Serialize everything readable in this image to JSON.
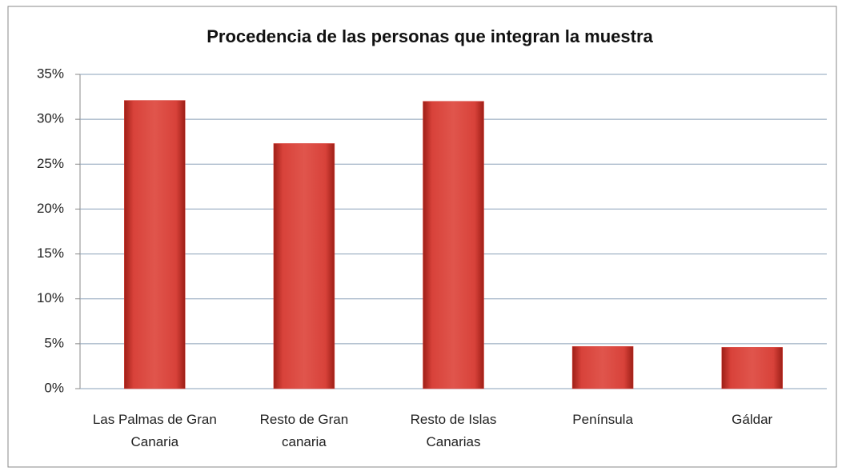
{
  "chart_data": {
    "type": "bar",
    "title": "Procedencia de las personas que integran la muestra",
    "categories": [
      "Las Palmas de Gran Canaria",
      "Resto de Gran canaria",
      "Resto de Islas Canarias",
      "Península",
      "Gáldar"
    ],
    "values": [
      32.1,
      27.3,
      32,
      4.7,
      4.6
    ],
    "color": "#d8423a",
    "ylim": [
      0,
      35
    ],
    "yticks": [
      {
        "value": 0,
        "label": "0%"
      },
      {
        "value": 5,
        "label": "5%"
      },
      {
        "value": 10,
        "label": "10%"
      },
      {
        "value": 15,
        "label": "15%"
      },
      {
        "value": 20,
        "label": "20%"
      },
      {
        "value": 25,
        "label": "25%"
      },
      {
        "value": 30,
        "label": "30%"
      },
      {
        "value": 35,
        "label": "35%"
      }
    ],
    "grid": true
  }
}
